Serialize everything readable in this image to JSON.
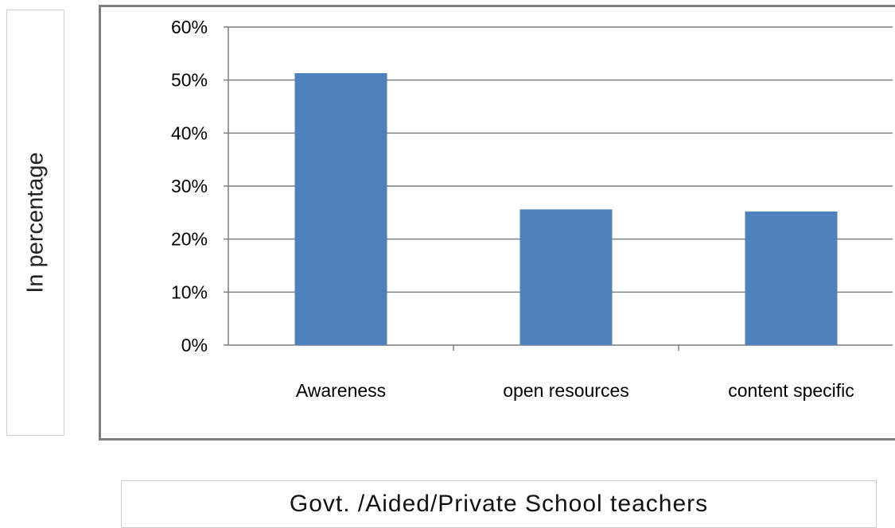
{
  "chart_data": {
    "type": "bar",
    "title": "",
    "xlabel": "Govt. /Aided/Private School teachers",
    "ylabel": "In percentage",
    "categories": [
      "Awareness",
      "open resources",
      "content specific"
    ],
    "values": [
      51.3,
      25.6,
      25.2
    ],
    "ylim": [
      0,
      60
    ],
    "yticks": [
      0,
      10,
      20,
      30,
      40,
      50,
      60
    ],
    "ytick_labels": [
      "0%",
      "10%",
      "20%",
      "30%",
      "40%",
      "50%",
      "60%"
    ],
    "grid": true,
    "legend": "none",
    "bar_color": "#4f81bd"
  }
}
